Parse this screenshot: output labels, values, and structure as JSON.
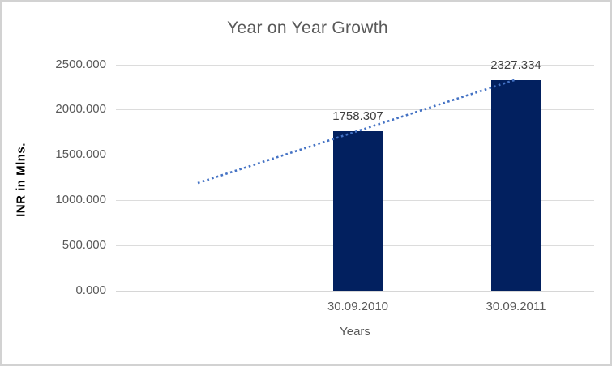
{
  "chart_data": {
    "type": "bar",
    "title": "Year on Year Growth",
    "xlabel": "Years",
    "ylabel": "INR in Mlns.",
    "categories": [
      "30.09.2010",
      "30.09.2011"
    ],
    "values": [
      1758.307,
      2327.334
    ],
    "data_labels": [
      "1758.307",
      "2327.334"
    ],
    "ylim": [
      0,
      2500
    ],
    "ytick_values": [
      0,
      500,
      1000,
      1500,
      2000,
      2500
    ],
    "ytick_labels": [
      "0.000",
      "500.000",
      "1000.000",
      "1500.000",
      "2000.000",
      "2500.000"
    ],
    "grid": true,
    "legend": false,
    "trendline": {
      "type": "linear",
      "style": "dotted",
      "start_value": 1190,
      "end_value": 2327.334,
      "note": "dotted linear trendline extended one period backward before first bar"
    },
    "colors": {
      "bar": "#02205f",
      "trendline": "#4472c4",
      "gridline": "#dcdcdc",
      "tick_text": "#595959",
      "title_text": "#595959",
      "data_label_text": "#404040",
      "y_axis_title_text": "#000000",
      "frame_border": "#d2d2d2",
      "background": "#ffffff"
    }
  }
}
